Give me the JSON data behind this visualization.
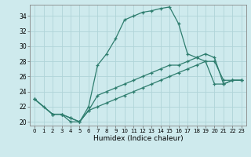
{
  "xlabel": "Humidex (Indice chaleur)",
  "bg_color": "#ceeaed",
  "grid_color": "#b0d4d8",
  "line_color": "#2e7d6e",
  "xlim": [
    -0.5,
    23.5
  ],
  "ylim": [
    19.5,
    35.5
  ],
  "xticks": [
    0,
    1,
    2,
    3,
    4,
    5,
    6,
    7,
    8,
    9,
    10,
    11,
    12,
    13,
    14,
    15,
    16,
    17,
    18,
    19,
    20,
    21,
    22,
    23
  ],
  "yticks": [
    20,
    22,
    24,
    26,
    28,
    30,
    32,
    34
  ],
  "line1_x": [
    0,
    1,
    2,
    3,
    4,
    5,
    6,
    7,
    8,
    9,
    10,
    11,
    12,
    13,
    14,
    15,
    16,
    17,
    18,
    19,
    20,
    21,
    22,
    23
  ],
  "line1_y": [
    23,
    22,
    21,
    21,
    20,
    20,
    22,
    27.5,
    29,
    31,
    33.5,
    34,
    34.5,
    34.7,
    35.0,
    35.2,
    33,
    29.0,
    28.5,
    28.0,
    25.0,
    25.0,
    25.5,
    25.5
  ],
  "line2_x": [
    0,
    2,
    3,
    4,
    5,
    6,
    7,
    8,
    9,
    10,
    11,
    12,
    13,
    14,
    15,
    16,
    17,
    18,
    19,
    20,
    21,
    22,
    23
  ],
  "line2_y": [
    23,
    21,
    21,
    20.5,
    20,
    21.5,
    23.5,
    24.0,
    24.5,
    25.0,
    25.5,
    26.0,
    26.5,
    27.0,
    27.5,
    27.5,
    28.0,
    28.5,
    29.0,
    28.5,
    25.0,
    25.5,
    25.5
  ],
  "line3_x": [
    0,
    2,
    3,
    4,
    5,
    6,
    7,
    8,
    9,
    10,
    11,
    12,
    13,
    14,
    15,
    16,
    17,
    18,
    19,
    20,
    21,
    22,
    23
  ],
  "line3_y": [
    23,
    21,
    21,
    20.5,
    20,
    21.5,
    22.0,
    22.5,
    23.0,
    23.5,
    24.0,
    24.5,
    25.0,
    25.5,
    26.0,
    26.5,
    27.0,
    27.5,
    28.0,
    28.0,
    25.5,
    25.5,
    25.5
  ]
}
